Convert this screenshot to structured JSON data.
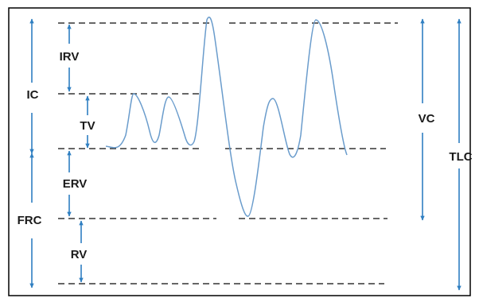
{
  "diagram": {
    "labels": {
      "irv": "IRV",
      "ic": "IC",
      "tv": "TV",
      "erv": "ERV",
      "frc": "FRC",
      "rv": "RV",
      "vc": "VC",
      "tlc": "TLC"
    },
    "colors": {
      "frame": "#000000",
      "arrows": "#2f7fc1",
      "trace": "#6a9ccc",
      "dashed_lines": "#333333",
      "text": "#1a1a1a"
    }
  }
}
